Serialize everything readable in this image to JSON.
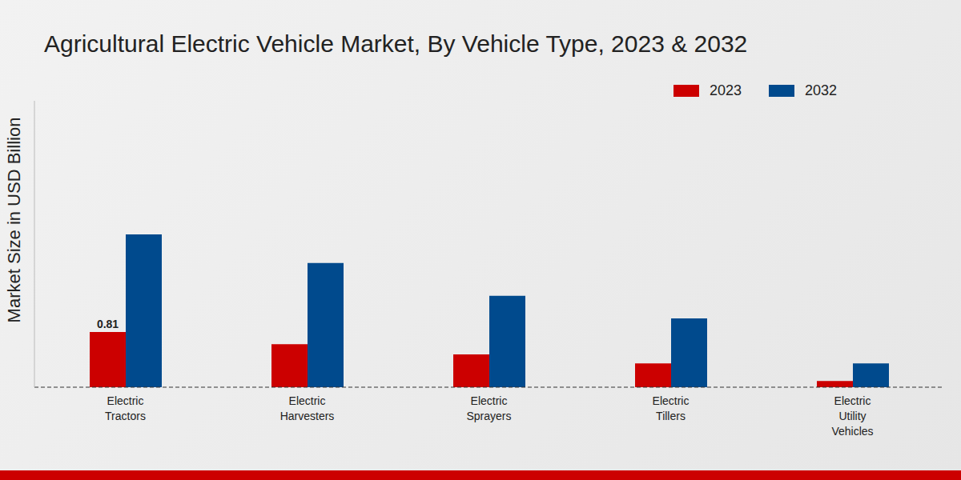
{
  "chart_data": {
    "type": "bar",
    "title": "Agricultural Electric Vehicle Market, By Vehicle Type, 2023 & 2032",
    "y_label": "Market Size in USD Billion",
    "categories": [
      "Electric Tractors",
      "Electric Harvesters",
      "Electric Sprayers",
      "Electric Tillers",
      "Electric Utility Vehicles"
    ],
    "series": [
      {
        "name": "2023",
        "color": "#cc0000",
        "values": [
          0.81,
          0.63,
          0.48,
          0.35,
          0.09
        ],
        "value_labels": [
          "0.81",
          null,
          null,
          null,
          null
        ]
      },
      {
        "name": "2032",
        "color": "#004a8d",
        "values": [
          2.24,
          1.82,
          1.34,
          1.01,
          0.35
        ]
      }
    ],
    "ylim": [
      0,
      4.2
    ],
    "yticks": [],
    "tick_labels": "x",
    "legend": "top-right",
    "grid": false
  }
}
